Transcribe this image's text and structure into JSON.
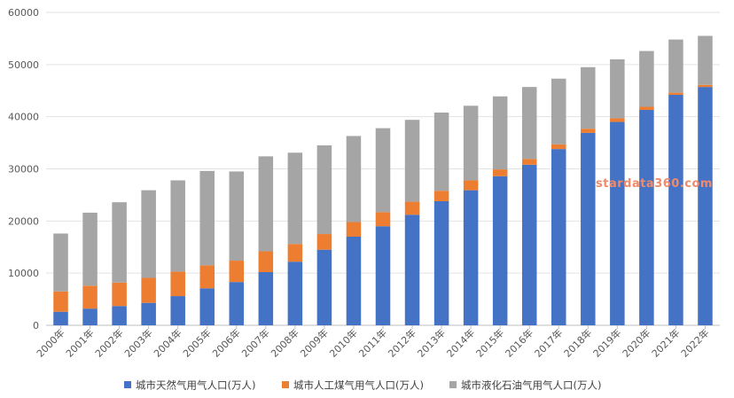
{
  "chart_data": {
    "type": "bar",
    "stacked": true,
    "categories": [
      "2000年",
      "2001年",
      "2002年",
      "2003年",
      "2004年",
      "2005年",
      "2006年",
      "2007年",
      "2008年",
      "2009年",
      "2010年",
      "2011年",
      "2012年",
      "2013年",
      "2014年",
      "2015年",
      "2016年",
      "2017年",
      "2018年",
      "2019年",
      "2020年",
      "2021年",
      "2022年"
    ],
    "series": [
      {
        "name": "城市天然气用气人口(万人)",
        "color": "#4472c4",
        "values": [
          2600,
          3200,
          3700,
          4300,
          5600,
          7100,
          8300,
          10200,
          12200,
          14500,
          17000,
          19000,
          21200,
          23800,
          25900,
          28600,
          30800,
          33800,
          36900,
          39000,
          41300,
          44200,
          45700
        ]
      },
      {
        "name": "城市人工煤气用气人口(万人)",
        "color": "#ed7d31",
        "values": [
          3900,
          4400,
          4500,
          4800,
          4700,
          4400,
          4100,
          4000,
          3400,
          3000,
          2800,
          2700,
          2500,
          2000,
          1900,
          1300,
          1100,
          900,
          800,
          700,
          600,
          400,
          400
        ]
      },
      {
        "name": "城市液化石油气用气人口(万人)",
        "color": "#a5a5a5",
        "values": [
          11100,
          14000,
          15400,
          16800,
          17500,
          18100,
          17100,
          18200,
          17500,
          17000,
          16500,
          16100,
          15700,
          15000,
          14300,
          14000,
          13800,
          12600,
          11800,
          11300,
          10700,
          10200,
          9400
        ]
      }
    ],
    "yticks": [
      "0",
      "10000",
      "20000",
      "30000",
      "40000",
      "50000",
      "60000"
    ],
    "ylim": [
      0,
      60000
    ],
    "legend_position": "bottom",
    "grid": true
  },
  "watermark": "stardata360.com"
}
